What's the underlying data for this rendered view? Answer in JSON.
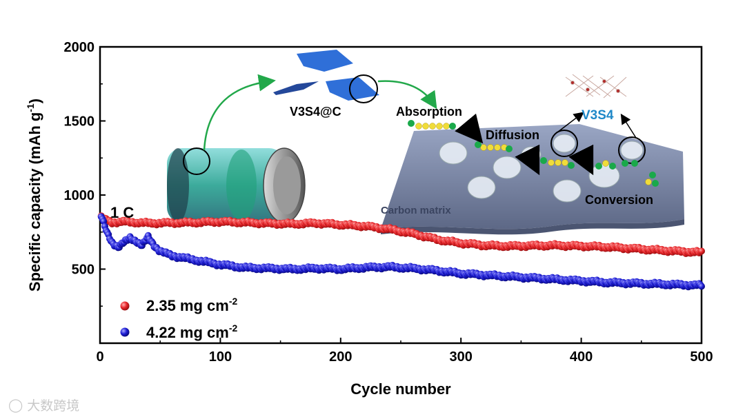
{
  "watermark": "大数跨境",
  "chart_data": {
    "type": "scatter",
    "title": "",
    "xlabel": "Cycle number",
    "ylabel": "Specific capacity (mAh g",
    "ylabel_sup": "-1",
    "ylabel_close": ")",
    "xlim": [
      0,
      500
    ],
    "ylim": [
      0,
      2000
    ],
    "xticks": [
      0,
      100,
      200,
      300,
      400,
      500
    ],
    "yticks": [
      500,
      1000,
      1500,
      2000
    ],
    "rate_label": "1 C",
    "series": [
      {
        "name": "2.35 mg cm",
        "name_sup": "-2",
        "color": "#e8262a",
        "x": [
          1,
          5,
          10,
          20,
          40,
          60,
          80,
          100,
          120,
          140,
          160,
          180,
          200,
          220,
          240,
          260,
          280,
          300,
          320,
          340,
          360,
          380,
          400,
          420,
          440,
          460,
          480,
          500
        ],
        "y": [
          850,
          830,
          815,
          820,
          810,
          812,
          815,
          820,
          815,
          808,
          805,
          810,
          800,
          790,
          770,
          740,
          700,
          675,
          660,
          655,
          658,
          660,
          655,
          650,
          640,
          630,
          620,
          612
        ]
      },
      {
        "name": "4.22 mg cm",
        "name_sup": "-2",
        "color": "#1f1fd6",
        "x": [
          1,
          3,
          6,
          10,
          15,
          20,
          25,
          30,
          35,
          40,
          45,
          50,
          60,
          80,
          100,
          120,
          140,
          160,
          180,
          200,
          220,
          240,
          260,
          280,
          300,
          320,
          340,
          360,
          380,
          400,
          420,
          440,
          460,
          480,
          500
        ],
        "y": [
          860,
          810,
          740,
          680,
          650,
          680,
          710,
          690,
          660,
          715,
          660,
          620,
          590,
          560,
          530,
          510,
          505,
          500,
          505,
          500,
          510,
          515,
          505,
          490,
          470,
          460,
          450,
          440,
          430,
          420,
          410,
          405,
          400,
          395,
          390
        ]
      }
    ],
    "annotations": {
      "composite": "V3S4@C",
      "absorption": "Absorption",
      "diffusion": "Diffusion",
      "conversion": "Conversion",
      "carbon_matrix": "Carbon matrix",
      "crystal": "V3S4"
    }
  }
}
